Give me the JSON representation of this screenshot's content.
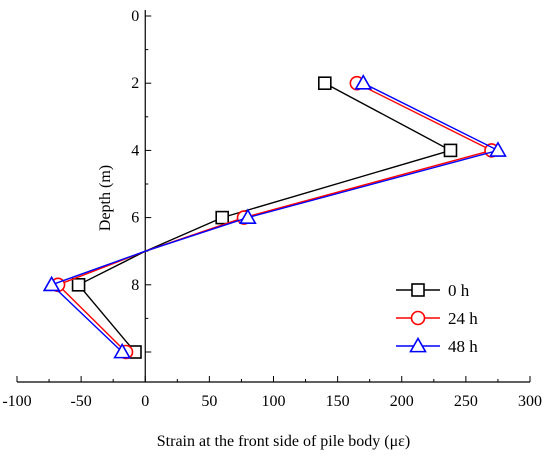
{
  "chart_data": {
    "type": "line",
    "title": "",
    "xlabel": "Strain at the front side of pile body (με)",
    "ylabel": "Depth (m)",
    "xlim": [
      -100,
      300
    ],
    "ylim": [
      0,
      11
    ],
    "y_inverted": true,
    "x_ticks": [
      "-100",
      "-50",
      "0",
      "50",
      "100",
      "150",
      "200",
      "250",
      "300"
    ],
    "y_ticks": [
      "0",
      "2",
      "4",
      "6",
      "8",
      "10"
    ],
    "grid": false,
    "legend_position": "bottom-right",
    "series": [
      {
        "name": "0 h",
        "color": "#000000",
        "marker": "square",
        "points": [
          [
            140,
            2
          ],
          [
            238,
            4
          ],
          [
            60,
            6
          ],
          [
            0,
            7
          ],
          [
            -52,
            8
          ],
          [
            -8,
            10
          ]
        ]
      },
      {
        "name": "24 h",
        "color": "#ff0000",
        "marker": "circle",
        "points": [
          [
            165,
            2
          ],
          [
            270,
            4
          ],
          [
            77,
            6
          ],
          [
            0,
            7
          ],
          [
            -68,
            8
          ],
          [
            -15,
            10
          ]
        ]
      },
      {
        "name": "48 h",
        "color": "#0000ff",
        "marker": "triangle",
        "points": [
          [
            170,
            2
          ],
          [
            275,
            4
          ],
          [
            80,
            6
          ],
          [
            0,
            7
          ],
          [
            -73,
            8
          ],
          [
            -18,
            10
          ]
        ]
      }
    ]
  }
}
